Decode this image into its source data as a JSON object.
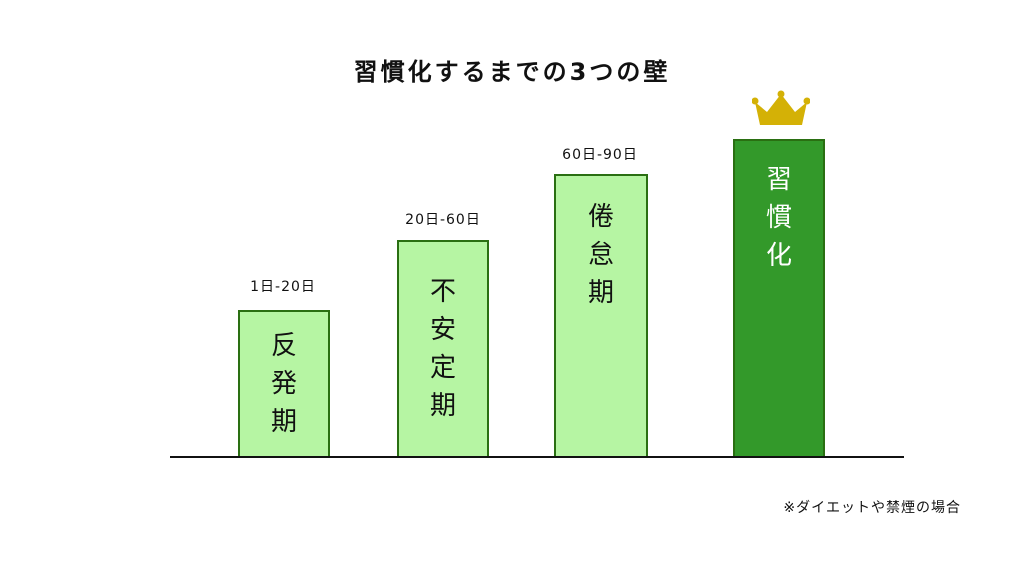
{
  "title": "習慣化するまでの3つの壁",
  "bars": [
    {
      "range": "1日-20日",
      "label_lines": [
        "反",
        "発",
        "期"
      ],
      "color": "#b6f5a3"
    },
    {
      "range": "20日-60日",
      "label_lines": [
        "不",
        "安",
        "定",
        "期"
      ],
      "color": "#b6f5a3"
    },
    {
      "range": "60日-90日",
      "label_lines": [
        "倦",
        "怠",
        "期"
      ],
      "color": "#b6f5a3"
    },
    {
      "range": "",
      "label_lines": [
        "習",
        "慣",
        "化"
      ],
      "color": "#33992a",
      "marker": "crown-icon"
    }
  ],
  "colors": {
    "light_bar": "#b6f5a3",
    "goal_bar": "#33992a",
    "bar_border": "#2a6f12",
    "crown": "#d4b106"
  },
  "note": "※ダイエットや禁煙の場合"
}
